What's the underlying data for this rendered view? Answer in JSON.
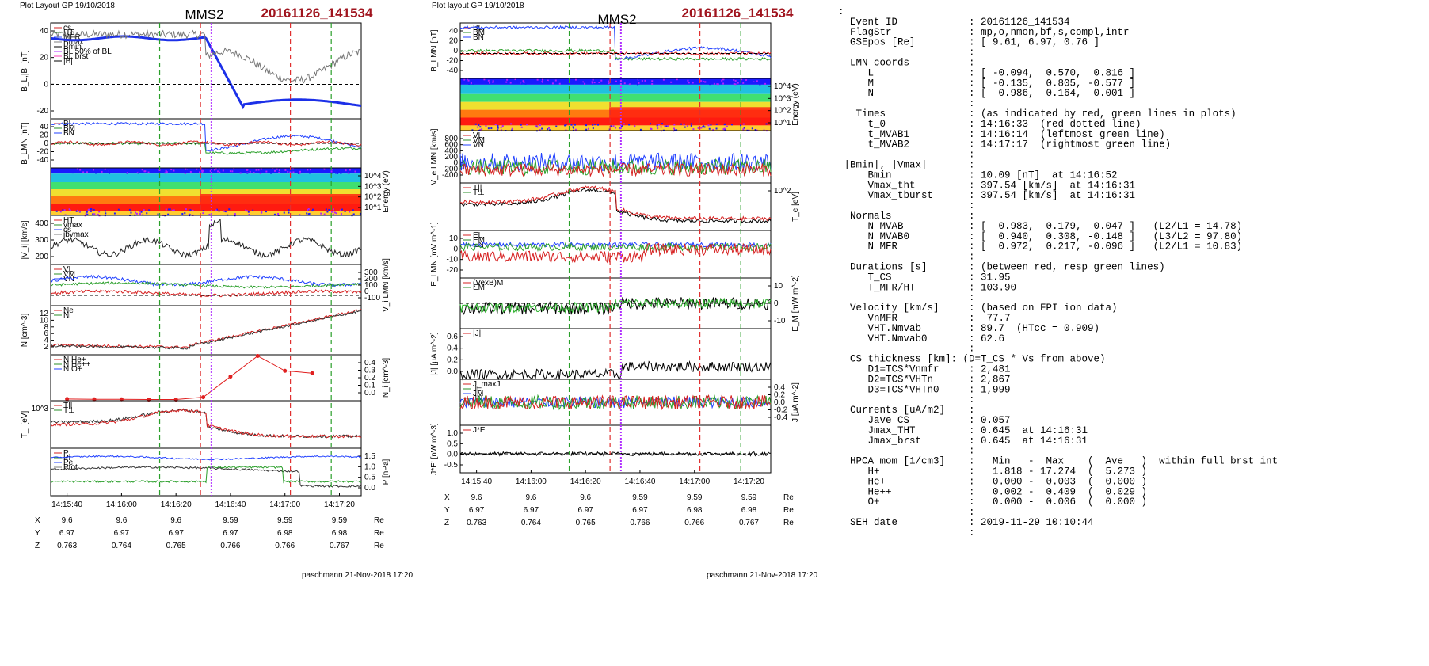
{
  "header": {
    "left_label": "Plot Layout GP 19/10/2018",
    "mid_label": "Plot layout GP 19/10/2018",
    "spacecraft": "MMS2",
    "event": "20161126_141534"
  },
  "footer": {
    "left": "paschmann 21-Nov-2018 17:20",
    "mid": "paschmann 21-Nov-2018 17:20"
  },
  "time_ticks": [
    "14:15:40",
    "14:16:00",
    "14:16:20",
    "14:16:40",
    "14:17:00",
    "14:17:20"
  ],
  "position_table": {
    "rows": [
      {
        "label": "X",
        "values": [
          "9.6",
          "9.6",
          "9.6",
          "9.59",
          "9.59",
          "9.59"
        ],
        "unit": "Re"
      },
      {
        "label": "Y",
        "values": [
          "6.97",
          "6.97",
          "6.97",
          "6.97",
          "6.98",
          "6.98"
        ],
        "unit": "Re"
      },
      {
        "label": "Z",
        "values": [
          "0.763",
          "0.764",
          "0.765",
          "0.766",
          "0.766",
          "0.767"
        ],
        "unit": "Re"
      }
    ]
  },
  "left_panels": [
    {
      "ylabel": "B_L,|B| [nT]",
      "ticks": [
        "40",
        "20",
        "0",
        "-20"
      ],
      "legend": [
        "cs",
        "HT",
        "MFR",
        "Bmax",
        "Bmin",
        "BL 50% of BL",
        "BL brst",
        "|B|"
      ]
    },
    {
      "ylabel": "B_LMN [nT]",
      "ticks": [
        "40",
        "20",
        "0",
        "-20",
        "-40"
      ],
      "legend": [
        "BL",
        "BM",
        "BN"
      ]
    },
    {
      "ylabel": "Energy (eV)",
      "ticks": [
        "10^4",
        "10^3",
        "10^2",
        "10^1"
      ],
      "legend": []
    },
    {
      "ylabel": "|V_i| [km/s]",
      "ticks": [
        "400",
        "300",
        "200"
      ],
      "legend": [
        "HT",
        "vmax",
        "cs",
        "jbvmax"
      ]
    },
    {
      "ylabel": "V_i LMN [km/s]",
      "ticks": [
        "300",
        "200",
        "100",
        "0",
        "-100"
      ],
      "legend": [
        "VL",
        "VM",
        "VN"
      ]
    },
    {
      "ylabel": "N [cm^-3]",
      "ticks": [
        "12",
        "10",
        "8",
        "6",
        "4",
        "2"
      ],
      "legend": [
        "Ne",
        "Ni"
      ]
    },
    {
      "ylabel": "N_i [cm^-3]",
      "ticks": [
        "0.4",
        "0.3",
        "0.2",
        "0.1",
        "0.0"
      ],
      "legend": [
        "N He+",
        "N He++",
        "N O+"
      ]
    },
    {
      "ylabel": "T_i [eV]",
      "ticks": [
        "10^3"
      ],
      "legend": [
        "T||",
        "T⊥"
      ]
    },
    {
      "ylabel": "P [nPa]",
      "ticks": [
        "1.5",
        "1.0",
        "0.5",
        "0.0"
      ],
      "legend": [
        "P",
        "Pi",
        "Pe",
        "Ptot"
      ]
    }
  ],
  "mid_panels": [
    {
      "ylabel": "B_LMN [nT]",
      "ticks": [
        "40",
        "20",
        "0",
        "-20",
        "-40"
      ],
      "legend": [
        "BL",
        "BM",
        "BN"
      ]
    },
    {
      "ylabel": "Energy (eV)",
      "ticks": [
        "10^4",
        "10^3",
        "10^2",
        "10^1"
      ],
      "legend": []
    },
    {
      "ylabel": "V_e LMN [km/s]",
      "ticks": [
        "800",
        "600",
        "400",
        "200",
        "0",
        "-200",
        "-400"
      ],
      "legend": [
        "VL",
        "VM",
        "VN"
      ]
    },
    {
      "ylabel": "T_e [eV]",
      "ticks": [
        "10^2"
      ],
      "legend": [
        "T||",
        "T⊥"
      ]
    },
    {
      "ylabel": "E_LMN [mV m^-1]",
      "ticks": [
        "10",
        "0",
        "-10",
        "-20"
      ],
      "legend": [
        "EL",
        "EM",
        "EN"
      ]
    },
    {
      "ylabel": "E_M [mW m^-2]",
      "ticks": [
        "10",
        "0",
        "-10"
      ],
      "legend": [
        "(VexB)M",
        "EM"
      ]
    },
    {
      "ylabel": "|J| [μA m^-2]",
      "ticks": [
        "0.6",
        "0.4",
        "0.2",
        "0.0"
      ],
      "legend": [
        "|J|"
      ]
    },
    {
      "ylabel": "J [μA m^-2]",
      "ticks": [
        "0.4",
        "0.2",
        "0.0",
        "-0.2",
        "-0.4"
      ],
      "legend": [
        "J_maxJ",
        "JL",
        "JM",
        "JN"
      ]
    },
    {
      "ylabel": "J*E' [nW m^-3]",
      "ticks": [
        "1.0",
        "0.5",
        "0.0",
        "-0.5"
      ],
      "legend": [
        "J*E'"
      ]
    }
  ],
  "right_text": [
    ":",
    "  Event ID            : 20161126_141534",
    "  FlagStr             : mp,o,nmon,bf,s,compl,intr",
    "  GSEpos [Re]         : [ 9.61, 6.97, 0.76 ]",
    "                      :",
    "  LMN coords          :",
    "     L                : [ -0.094,  0.570,  0.816 ]",
    "     M                : [ -0.135,  0.805, -0.577 ]",
    "     N                : [  0.986,  0.164, -0.001 ]",
    "                      :",
    "   Times              : (as indicated by red, green lines in plots)",
    "     t_0              : 14:16:33  (red dotted line)",
    "     t_MVAB1          : 14:16:14  (leftmost green line)",
    "     t_MVAB2          : 14:17:17  (rightmost green line)",
    "                      :",
    " |Bmin|, |Vmax|       :",
    "     Bmin             : 10.09 [nT]  at 14:16:52",
    "     Vmax_tht         : 397.54 [km/s]  at 14:16:31",
    "     Vmax_tburst      : 397.54 [km/s]  at 14:16:31",
    "                      :",
    "  Normals             :",
    "     N MVAB           : [  0.983,  0.179, -0.047 ]   (L2/L1 = 14.78)",
    "     N MVAB0          : [  0.940,  0.308, -0.148 ]   (L3/L2 = 97.80)",
    "     N MFR            : [  0.972,  0.217, -0.096 ]   (L2/L1 = 10.83)",
    "                      :",
    "  Durations [s]       : (between red, resp green lines)",
    "     T_CS             : 31.95",
    "     T_MFR/HT         : 103.90",
    "                      :",
    "  Velocity [km/s]     : (based on FPI ion data)",
    "     VnMFR            : -77.7",
    "     VHT.Nmvab        : 89.7  (HTcc = 0.909)",
    "     VHT.Nmvab0       : 62.6",
    "                      :",
    "  CS thickness [km]: (D=T_CS * Vs from above)",
    "     D1=TCS*Vnmfr     : 2,481",
    "     D2=TCS*VHTn      : 2,867",
    "     D3=TCS*VHTn0     : 1,999",
    "                      :",
    "  Currents [uA/m2]    :",
    "     Jave_CS          : 0.057",
    "     Jmax_THT         : 0.645  at 14:16:31",
    "     Jmax_brst        : 0.645  at 14:16:31",
    "                      :",
    "  HPCA mom [1/cm3]    :   Min   -  Max    (  Ave   )  within full brst int",
    "     H+               :   1.818 - 17.274  (  5.273 )",
    "     He+              :   0.000 -  0.003  (  0.000 )",
    "     He++             :   0.002 -  0.409  (  0.029 )",
    "     O+               :   0.000 -  0.006  (  0.000 )",
    "                      :",
    "  SEH date            : 2019-11-29 10:10:44",
    "                      :"
  ],
  "chart_data": [
    {
      "type": "line",
      "title": "MMS2",
      "subtitle": "20161126_141534",
      "xlabel": "",
      "x": [
        "14:15:40",
        "14:16:00",
        "14:16:20",
        "14:16:40",
        "14:17:00",
        "14:17:20"
      ],
      "series": [
        {
          "name": "BL brst",
          "x": [
            "14:15:40",
            "14:15:50",
            "14:16:00",
            "14:16:10",
            "14:16:20",
            "14:16:28",
            "14:16:32",
            "14:16:36",
            "14:16:40",
            "14:16:50",
            "14:17:00",
            "14:17:10",
            "14:17:20",
            "14:17:26"
          ],
          "values": [
            33,
            40,
            43,
            44,
            44,
            43,
            20,
            2,
            -12,
            -18,
            -17,
            -20,
            -18,
            -8
          ]
        },
        {
          "name": "|B|",
          "x": [
            "14:15:40",
            "14:16:00",
            "14:16:20",
            "14:16:30",
            "14:16:40",
            "14:16:50",
            "14:17:00",
            "14:17:10",
            "14:17:20"
          ],
          "values": [
            40,
            44,
            45,
            44,
            35,
            25,
            28,
            30,
            28
          ]
        }
      ],
      "markers": {
        "t_0": "14:16:33",
        "t_MVAB1": "14:16:14",
        "t_MVAB2": "14:17:17"
      },
      "ylim": [
        -30,
        50
      ]
    },
    {
      "type": "line",
      "title": "MMS2",
      "x": [
        "14:15:40",
        "14:16:00",
        "14:16:20",
        "14:16:40",
        "14:17:00",
        "14:17:20"
      ],
      "series": [
        {
          "name": "N He++",
          "x": [
            "14:15:40",
            "14:15:50",
            "14:16:00",
            "14:16:10",
            "14:16:20",
            "14:16:30",
            "14:16:40",
            "14:16:50",
            "14:17:00",
            "14:17:10"
          ],
          "values": [
            0.015,
            0.012,
            0.012,
            0.01,
            0.01,
            0.03,
            0.21,
            0.39,
            0.26,
            0.24
          ]
        }
      ],
      "ylabel": "N_i [cm^-3]",
      "ylim": [
        0,
        0.4
      ]
    }
  ]
}
